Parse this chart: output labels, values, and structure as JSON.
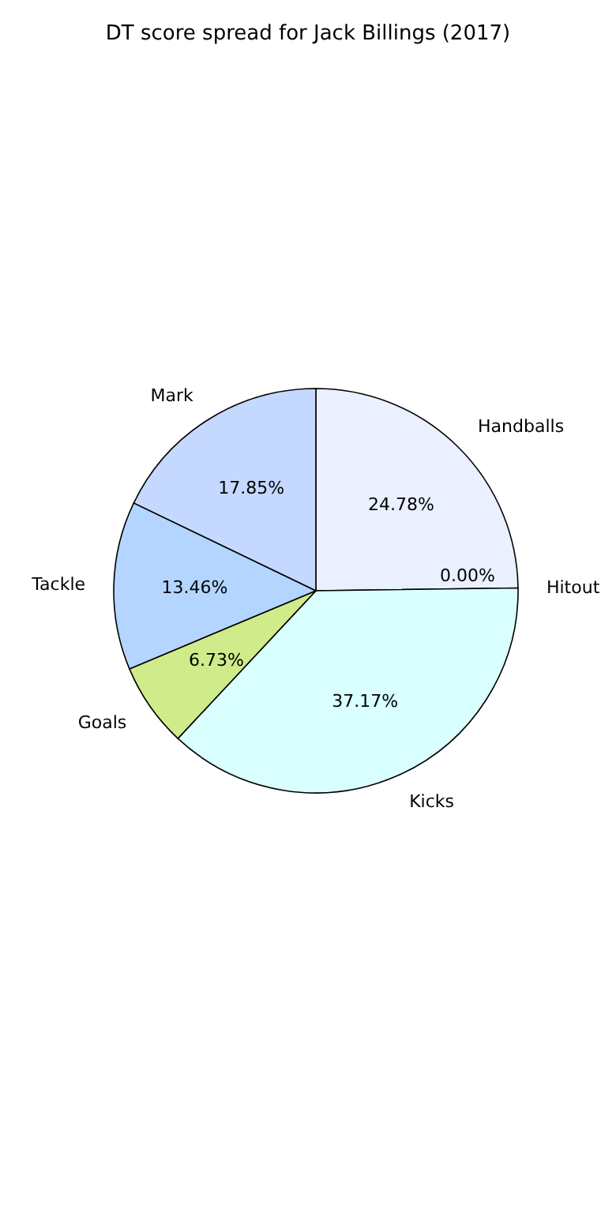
{
  "chart_data": {
    "type": "pie",
    "title": "DT score spread for Jack Billings (2017)",
    "categories": [
      "Handballs",
      "Hitout",
      "Kicks",
      "Goals",
      "Tackle",
      "Mark"
    ],
    "values": [
      24.78,
      0.0,
      37.17,
      6.73,
      13.46,
      17.85
    ],
    "value_labels": [
      "24.78%",
      "0.00%",
      "37.17%",
      "6.73%",
      "13.46%",
      "17.85%"
    ],
    "colors": [
      "#eaf0ff",
      "#c0c0c0",
      "#d9ffff",
      "#d0eb8a",
      "#b3d5ff",
      "#c5d8ff"
    ]
  }
}
